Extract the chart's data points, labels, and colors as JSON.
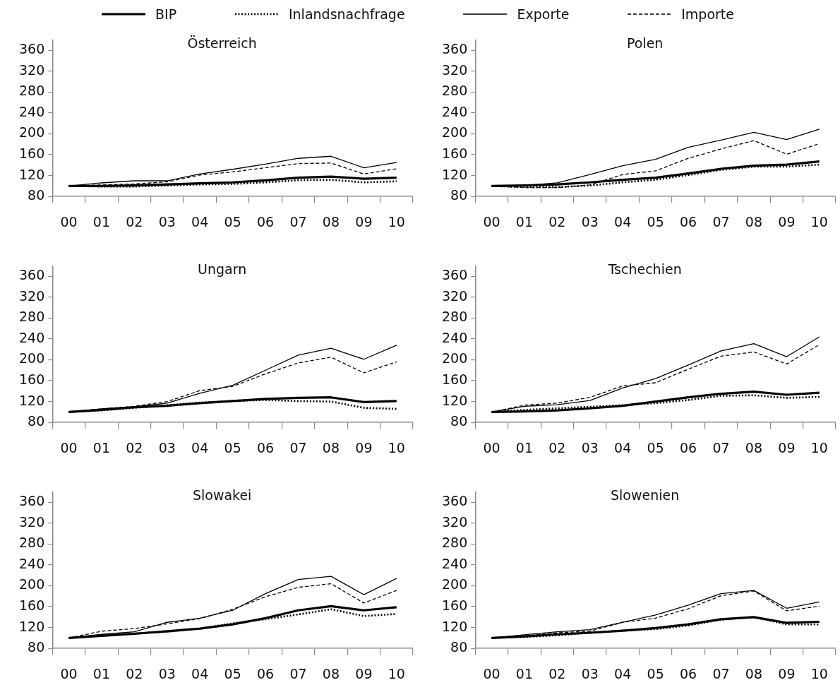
{
  "chart_data": [
    {
      "type": "line",
      "title": "Österreich",
      "categories": [
        "00",
        "01",
        "02",
        "03",
        "04",
        "05",
        "06",
        "07",
        "08",
        "09",
        "10"
      ],
      "ylim": [
        80,
        380
      ],
      "yticks": [
        80,
        120,
        160,
        200,
        240,
        280,
        320,
        360
      ],
      "legend": "top",
      "series": [
        {
          "name": "BIP",
          "color": "#000000",
          "line_style": "solid",
          "values": [
            100,
            100,
            101,
            103,
            105,
            107,
            111,
            116,
            118,
            114,
            116
          ]
        },
        {
          "name": "Inlandsnachfrage",
          "color": "#000000",
          "line_style": "dotted",
          "values": [
            100,
            99,
            99,
            101,
            103,
            104,
            107,
            111,
            112,
            107,
            109
          ]
        },
        {
          "name": "Exporte",
          "color": "#000000",
          "line_style": "solid",
          "values": [
            100,
            106,
            110,
            110,
            123,
            132,
            142,
            153,
            157,
            135,
            145
          ]
        },
        {
          "name": "Importe",
          "color": "#000000",
          "line_style": "dashed",
          "values": [
            100,
            102,
            104,
            108,
            121,
            127,
            135,
            143,
            144,
            123,
            133
          ]
        }
      ]
    },
    {
      "type": "line",
      "title": "Polen",
      "categories": [
        "00",
        "01",
        "02",
        "03",
        "04",
        "05",
        "06",
        "07",
        "08",
        "09",
        "10"
      ],
      "ylim": [
        80,
        380
      ],
      "yticks": [
        80,
        120,
        160,
        200,
        240,
        280,
        320,
        360
      ],
      "series": [
        {
          "name": "BIP",
          "color": "#000000",
          "line_style": "solid",
          "values": [
            100,
            101,
            103,
            107,
            112,
            116,
            124,
            133,
            139,
            141,
            147
          ]
        },
        {
          "name": "Inlandsnachfrage",
          "color": "#000000",
          "line_style": "dotted",
          "values": [
            100,
            98,
            98,
            101,
            107,
            112,
            121,
            131,
            137,
            137,
            141
          ]
        },
        {
          "name": "Exporte",
          "color": "#000000",
          "line_style": "solid",
          "values": [
            100,
            101,
            106,
            122,
            139,
            151,
            174,
            188,
            203,
            189,
            209
          ]
        },
        {
          "name": "Importe",
          "color": "#000000",
          "line_style": "dashed",
          "values": [
            100,
            97,
            97,
            102,
            122,
            129,
            153,
            171,
            187,
            161,
            181
          ]
        }
      ]
    },
    {
      "type": "line",
      "title": "Ungarn",
      "categories": [
        "00",
        "01",
        "02",
        "03",
        "04",
        "05",
        "06",
        "07",
        "08",
        "09",
        "10"
      ],
      "ylim": [
        80,
        380
      ],
      "yticks": [
        80,
        120,
        160,
        200,
        240,
        280,
        320,
        360
      ],
      "series": [
        {
          "name": "BIP",
          "color": "#000000",
          "line_style": "solid",
          "values": [
            100,
            104,
            109,
            112,
            117,
            121,
            125,
            127,
            128,
            119,
            121
          ]
        },
        {
          "name": "Inlandsnachfrage",
          "color": "#000000",
          "line_style": "dotted",
          "values": [
            100,
            103,
            108,
            113,
            118,
            121,
            123,
            121,
            120,
            108,
            106
          ]
        },
        {
          "name": "Exporte",
          "color": "#000000",
          "line_style": "solid",
          "values": [
            100,
            106,
            110,
            117,
            136,
            151,
            180,
            209,
            222,
            201,
            228
          ]
        },
        {
          "name": "Importe",
          "color": "#000000",
          "line_style": "dashed",
          "values": [
            100,
            106,
            111,
            120,
            141,
            149,
            173,
            194,
            205,
            175,
            196
          ]
        }
      ]
    },
    {
      "type": "line",
      "title": "Tschechien",
      "categories": [
        "00",
        "01",
        "02",
        "03",
        "04",
        "05",
        "06",
        "07",
        "08",
        "09",
        "10"
      ],
      "ylim": [
        80,
        380
      ],
      "yticks": [
        80,
        120,
        160,
        200,
        240,
        280,
        320,
        360
      ],
      "series": [
        {
          "name": "BIP",
          "color": "#000000",
          "line_style": "solid",
          "values": [
            100,
            101,
            103,
            107,
            112,
            120,
            128,
            135,
            139,
            133,
            137
          ]
        },
        {
          "name": "Inlandsnachfrage",
          "color": "#000000",
          "line_style": "dotted",
          "values": [
            100,
            104,
            107,
            110,
            113,
            117,
            123,
            131,
            132,
            127,
            129
          ]
        },
        {
          "name": "Exporte",
          "color": "#000000",
          "line_style": "solid",
          "values": [
            100,
            111,
            114,
            122,
            146,
            164,
            190,
            217,
            231,
            206,
            244
          ]
        },
        {
          "name": "Importe",
          "color": "#000000",
          "line_style": "dashed",
          "values": [
            100,
            113,
            117,
            128,
            150,
            156,
            182,
            207,
            215,
            192,
            229
          ]
        }
      ]
    },
    {
      "type": "line",
      "title": "Slowakei",
      "categories": [
        "00",
        "01",
        "02",
        "03",
        "04",
        "05",
        "06",
        "07",
        "08",
        "09",
        "10"
      ],
      "ylim": [
        80,
        380
      ],
      "yticks": [
        80,
        120,
        160,
        200,
        240,
        280,
        320,
        360
      ],
      "series": [
        {
          "name": "BIP",
          "color": "#000000",
          "line_style": "solid",
          "values": [
            100,
            104,
            108,
            113,
            118,
            126,
            138,
            153,
            161,
            153,
            159
          ]
        },
        {
          "name": "Inlandsnachfrage",
          "color": "#000000",
          "line_style": "dotted",
          "values": [
            100,
            105,
            109,
            112,
            118,
            128,
            136,
            145,
            155,
            142,
            146
          ]
        },
        {
          "name": "Exporte",
          "color": "#000000",
          "line_style": "solid",
          "values": [
            100,
            107,
            112,
            130,
            138,
            153,
            185,
            212,
            218,
            183,
            214
          ]
        },
        {
          "name": "Importe",
          "color": "#000000",
          "line_style": "dashed",
          "values": [
            100,
            113,
            118,
            127,
            137,
            155,
            179,
            197,
            204,
            167,
            191
          ]
        }
      ]
    },
    {
      "type": "line",
      "title": "Slowenien",
      "categories": [
        "00",
        "01",
        "02",
        "03",
        "04",
        "05",
        "06",
        "07",
        "08",
        "09",
        "10"
      ],
      "ylim": [
        80,
        380
      ],
      "yticks": [
        80,
        120,
        160,
        200,
        240,
        280,
        320,
        360
      ],
      "series": [
        {
          "name": "BIP",
          "color": "#000000",
          "line_style": "solid",
          "values": [
            100,
            103,
            107,
            110,
            114,
            119,
            126,
            136,
            140,
            129,
            131
          ]
        },
        {
          "name": "Inlandsnachfrage",
          "color": "#000000",
          "line_style": "dotted",
          "values": [
            100,
            102,
            105,
            110,
            114,
            117,
            124,
            135,
            140,
            126,
            126
          ]
        },
        {
          "name": "Exporte",
          "color": "#000000",
          "line_style": "solid",
          "values": [
            100,
            106,
            112,
            116,
            130,
            144,
            163,
            185,
            191,
            157,
            169
          ]
        },
        {
          "name": "Importe",
          "color": "#000000",
          "line_style": "dashed",
          "values": [
            100,
            104,
            110,
            113,
            130,
            138,
            156,
            181,
            190,
            152,
            161
          ]
        }
      ]
    }
  ]
}
